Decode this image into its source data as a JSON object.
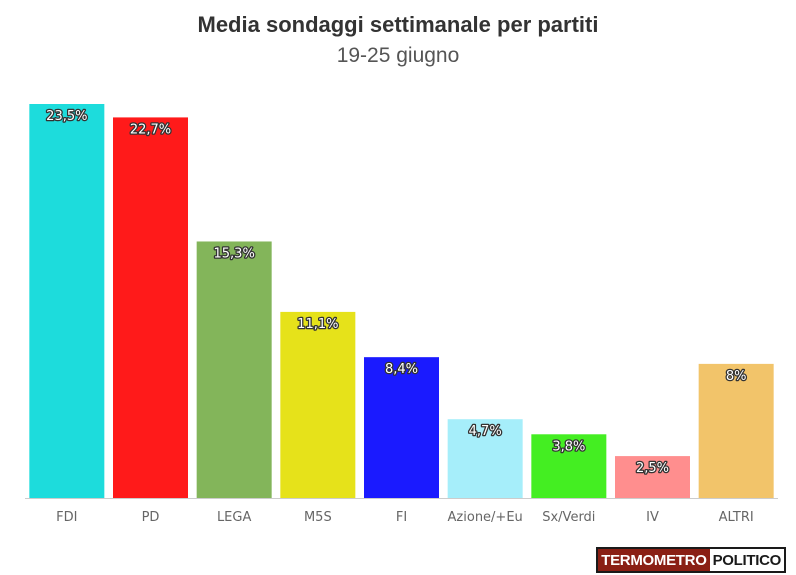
{
  "chart_data": {
    "type": "bar",
    "title": "Media sondaggi settimanale per partiti",
    "subtitle": "19-25 giugno",
    "categories": [
      "FDI",
      "PD",
      "LEGA",
      "M5S",
      "FI",
      "Azione/+Eu",
      "Sx/Verdi",
      "IV",
      "ALTRI"
    ],
    "values": [
      23.5,
      22.7,
      15.3,
      11.1,
      8.4,
      4.7,
      3.8,
      2.5,
      8
    ],
    "value_labels": [
      "23,5%",
      "22,7%",
      "15,3%",
      "11,1%",
      "8,4%",
      "4,7%",
      "3,8%",
      "2,5%",
      "8%"
    ],
    "colors": [
      "#1ddcdc",
      "#ff1a1a",
      "#83b55a",
      "#e6e21a",
      "#1a1aff",
      "#a6eefa",
      "#44ee22",
      "#ff8e8e",
      "#f2c46a"
    ],
    "ylim": [
      0,
      23.5
    ],
    "grid": false,
    "legend": false
  },
  "logo": {
    "left": "TERMOMETRO",
    "right": "POLITICO",
    "colors": {
      "left_bg": "#8a1f14",
      "right_bg": "#ffffff"
    }
  }
}
